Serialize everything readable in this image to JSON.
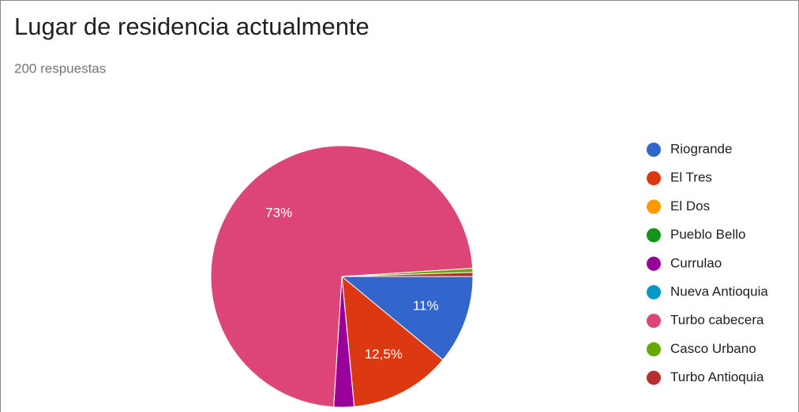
{
  "chart_data": {
    "type": "pie",
    "title": "Lugar de residencia actualmente",
    "subtitle": "200 respuestas",
    "categories": [
      "Riogrande",
      "El Tres",
      "El Dos",
      "Pueblo Bello",
      "Currulao",
      "Nueva Antioquia",
      "Turbo cabecera",
      "Casco Urbano",
      "Turbo Antioquia"
    ],
    "values": [
      11,
      12.5,
      0,
      0,
      2.5,
      0,
      73,
      0.5,
      0.5
    ],
    "value_labels": [
      "11%",
      "12,5%",
      null,
      null,
      null,
      null,
      "73%",
      null,
      null
    ],
    "colors": [
      "#3366cc",
      "#dc3912",
      "#ff9900",
      "#109618",
      "#990099",
      "#0099c6",
      "#dd4477",
      "#66aa00",
      "#b82e2e"
    ],
    "legend": "right"
  }
}
